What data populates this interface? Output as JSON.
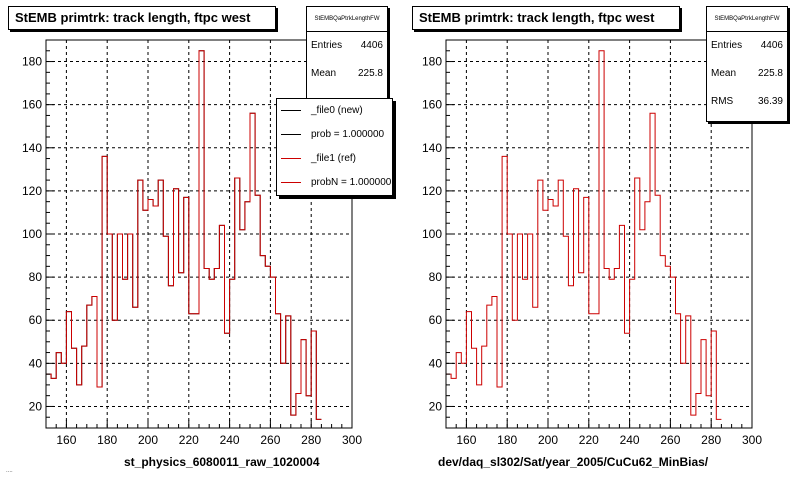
{
  "chart_data": [
    {
      "type": "histogram",
      "title": "StEMB primtrk: track length, ftpc west",
      "xlabel": "st_physics_6080011_raw_1020004",
      "ylabel": "",
      "xlim": [
        150,
        300
      ],
      "ylim": [
        10,
        190
      ],
      "x_ticks": [
        160,
        180,
        200,
        220,
        240,
        260,
        280,
        300
      ],
      "y_ticks": [
        20,
        40,
        60,
        80,
        100,
        120,
        140,
        160,
        180
      ],
      "grid": true,
      "stats": {
        "name": "StEMBQaPtrkLengthFW",
        "entries": "4406",
        "mean": "225.8"
      },
      "legend": [
        "_file0 (new)",
        "prob = 1.000000",
        "_file1 (ref)",
        "probN = 1.000000"
      ],
      "bin_edges_start": 150,
      "bin_width": 2.5,
      "series": [
        {
          "color": "#000000",
          "values": [
            35,
            33,
            45,
            40,
            64,
            47,
            30,
            48,
            67,
            71,
            29,
            136,
            100,
            60,
            100,
            79,
            100,
            66,
            125,
            111,
            116,
            113,
            125,
            99,
            76,
            121,
            82,
            117,
            63,
            63,
            185,
            84,
            79,
            84,
            104,
            54,
            79,
            126,
            102,
            115,
            156,
            118,
            90,
            85,
            80,
            63,
            40,
            62,
            16,
            26,
            51,
            25,
            55,
            14
          ]
        },
        {
          "color": "#cc0000",
          "values": [
            35,
            33,
            45,
            40,
            64,
            47,
            30,
            48,
            67,
            71,
            29,
            136,
            100,
            60,
            100,
            79,
            100,
            66,
            125,
            111,
            116,
            113,
            125,
            99,
            76,
            121,
            82,
            117,
            63,
            63,
            185,
            84,
            79,
            84,
            104,
            54,
            79,
            126,
            102,
            115,
            156,
            118,
            90,
            85,
            80,
            63,
            40,
            62,
            16,
            26,
            51,
            25,
            55,
            14
          ]
        }
      ]
    },
    {
      "type": "histogram",
      "title": "StEMB primtrk: track length, ftpc west",
      "xlabel": "dev/daq_sl302/Sat/year_2005/CuCu62_MinBias/",
      "ylabel": "",
      "xlim": [
        150,
        300
      ],
      "ylim": [
        10,
        190
      ],
      "x_ticks": [
        160,
        180,
        200,
        220,
        240,
        260,
        280,
        300
      ],
      "y_ticks": [
        20,
        40,
        60,
        80,
        100,
        120,
        140,
        160,
        180
      ],
      "grid": true,
      "stats": {
        "name": "StEMBQaPtrkLengthFW",
        "entries": "4406",
        "mean": "225.8",
        "rms": "36.39"
      },
      "bin_edges_start": 150,
      "bin_width": 2.5,
      "series": [
        {
          "color": "#cc0000",
          "values": [
            35,
            33,
            45,
            40,
            64,
            47,
            30,
            48,
            67,
            71,
            29,
            136,
            100,
            60,
            100,
            79,
            100,
            66,
            125,
            111,
            116,
            113,
            125,
            99,
            76,
            121,
            82,
            117,
            63,
            63,
            185,
            84,
            79,
            84,
            104,
            54,
            79,
            126,
            102,
            115,
            156,
            118,
            90,
            85,
            80,
            63,
            40,
            62,
            16,
            26,
            51,
            25,
            55,
            14
          ]
        }
      ]
    }
  ],
  "labels": {
    "entries": "Entries",
    "mean": "Mean",
    "rms": "RMS"
  },
  "footer": "...."
}
